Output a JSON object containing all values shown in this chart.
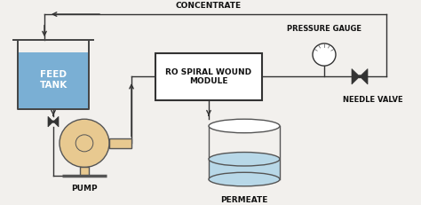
{
  "bg_color": "#f2f0ed",
  "labels": {
    "concentrate": "CONCENTRATE",
    "feed_tank": "FEED\nTANK",
    "pump": "PUMP",
    "ro_module": "RO SPIRAL WOUND\nMODULE",
    "pressure_gauge": "PRESSURE GAUGE",
    "needle_valve": "NEEDLE VALVE",
    "permeate": "PERMEATE"
  },
  "colors": {
    "feed_tank_water": "#7aafd4",
    "feed_tank_border": "#444444",
    "pump_body": "#e8c990",
    "pump_border": "#555555",
    "permeate_water": "#b8d8e8",
    "permeate_border": "#555555",
    "line": "#333333",
    "box_border": "#333333",
    "box_fill": "#ffffff",
    "text": "#111111"
  },
  "font_size": 6.5
}
